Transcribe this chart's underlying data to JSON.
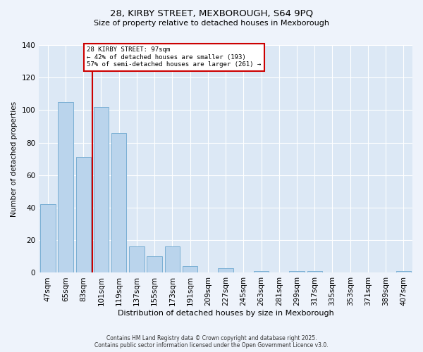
{
  "title_line1": "28, KIRBY STREET, MEXBOROUGH, S64 9PQ",
  "title_line2": "Size of property relative to detached houses in Mexborough",
  "xlabel": "Distribution of detached houses by size in Mexborough",
  "ylabel": "Number of detached properties",
  "categories": [
    "47sqm",
    "65sqm",
    "83sqm",
    "101sqm",
    "119sqm",
    "137sqm",
    "155sqm",
    "173sqm",
    "191sqm",
    "209sqm",
    "227sqm",
    "245sqm",
    "263sqm",
    "281sqm",
    "299sqm",
    "317sqm",
    "335sqm",
    "353sqm",
    "371sqm",
    "389sqm",
    "407sqm"
  ],
  "values": [
    42,
    105,
    71,
    102,
    86,
    16,
    10,
    16,
    4,
    0,
    3,
    0,
    1,
    0,
    1,
    1,
    0,
    0,
    0,
    0,
    1
  ],
  "bar_color": "#bad4ec",
  "bar_edge_color": "#7aafd4",
  "property_label": "28 KIRBY STREET: 97sqm",
  "annotation_line2": "← 42% of detached houses are smaller (193)",
  "annotation_line3": "57% of semi-detached houses are larger (261) →",
  "line_color": "#cc0000",
  "box_edge_color": "#cc0000",
  "ylim": [
    0,
    140
  ],
  "yticks": [
    0,
    20,
    40,
    60,
    80,
    100,
    120,
    140
  ],
  "fig_bg_color": "#eef3fb",
  "plot_bg_color": "#dce8f5",
  "footer_line1": "Contains HM Land Registry data © Crown copyright and database right 2025.",
  "footer_line2": "Contains public sector information licensed under the Open Government Licence v3.0."
}
